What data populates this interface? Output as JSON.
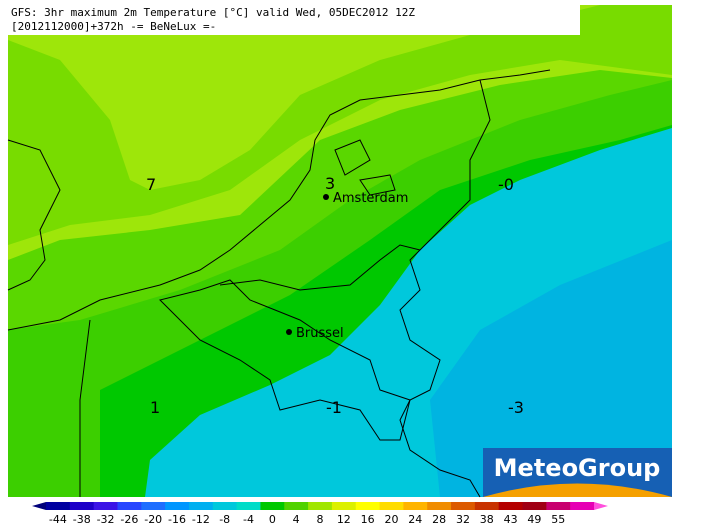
{
  "header": {
    "line1": "GFS: 3hr maximum 2m Temperature [°C] valid Wed, 05DEC2012 12Z",
    "line2": "[2012112000]+372h -= BeNeLux =-"
  },
  "contour_labels": [
    "7",
    "3",
    "-0",
    "1",
    "-1",
    "-3"
  ],
  "cities": [
    "Amsterdam",
    "Brussel"
  ],
  "logo": "MeteoGroup",
  "colorbar": {
    "ticks": [
      -44,
      -38,
      -32,
      -26,
      -20,
      -16,
      -12,
      -8,
      -4,
      0,
      4,
      8,
      12,
      16,
      20,
      24,
      28,
      32,
      38,
      43,
      49,
      55
    ],
    "colors": [
      "#00007a",
      "#0000a0",
      "#1e00c8",
      "#3c14e6",
      "#2846ff",
      "#1e6eff",
      "#0096ff",
      "#00aff0",
      "#00c8dc",
      "#00dcc8",
      "#00c800",
      "#50d200",
      "#a0e600",
      "#dcf000",
      "#ffff00",
      "#ffdc00",
      "#ffb400",
      "#f08c00",
      "#dc5a00",
      "#c83200",
      "#b40000",
      "#a00014",
      "#c8006e",
      "#e600b4",
      "#ff50dc"
    ]
  }
}
